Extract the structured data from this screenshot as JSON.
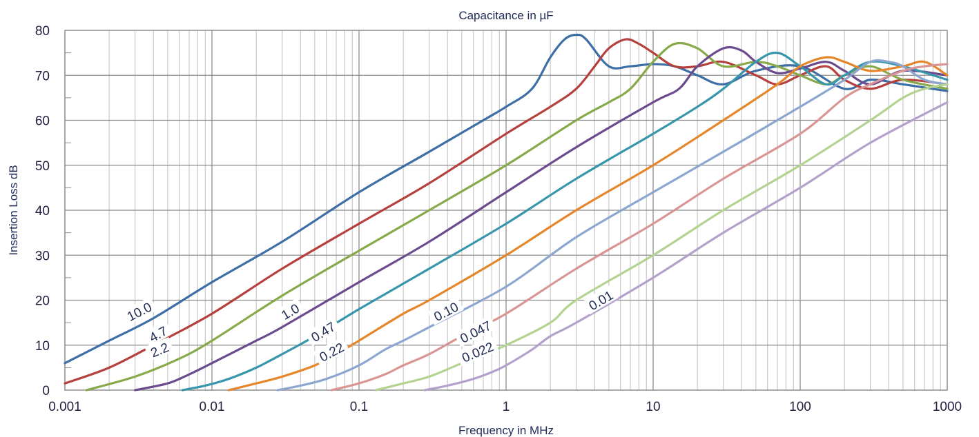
{
  "chart_data": {
    "type": "line",
    "title": "Capacitance in µF",
    "xlabel": "Frequency in MHz",
    "ylabel": "Insertion Loss dB",
    "x_scale": "log",
    "xlim": [
      0.001,
      1000
    ],
    "ylim": [
      0,
      80
    ],
    "x_ticks": [
      "0.001",
      "0.01",
      "0.1",
      "1",
      "10",
      "100",
      "1000"
    ],
    "y_ticks": [
      "0",
      "10",
      "20",
      "30",
      "40",
      "50",
      "60",
      "70",
      "80"
    ],
    "grid": true,
    "legend": "none",
    "series": [
      {
        "name": "10.0",
        "color": "#3d6ea5",
        "x": [
          0.001,
          0.002,
          0.004,
          0.01,
          0.03,
          0.1,
          0.3,
          0.7,
          1,
          1.5,
          2,
          2.5,
          3,
          3.5,
          5,
          7,
          10,
          14,
          20,
          30,
          50,
          100,
          200,
          300,
          500,
          1000
        ],
        "y": [
          6,
          11,
          16,
          24,
          33,
          44,
          53,
          60,
          63,
          67,
          74,
          78,
          79,
          78,
          72,
          72,
          72.5,
          72,
          70,
          68,
          71,
          72,
          67,
          69,
          68,
          66.5
        ],
        "label_x": 0.0032,
        "label_y": 17.5
      },
      {
        "name": "4.7",
        "color": "#b5403e",
        "x": [
          0.001,
          0.002,
          0.004,
          0.01,
          0.03,
          0.1,
          0.3,
          1,
          2,
          3,
          4,
          5,
          6.5,
          8,
          10,
          14,
          20,
          30,
          50,
          70,
          100,
          150,
          200,
          300,
          500,
          1000
        ],
        "y": [
          1.5,
          5,
          10,
          17,
          27,
          37,
          46,
          57,
          63,
          67,
          72,
          76,
          78,
          77,
          75,
          72,
          72,
          73,
          70,
          68,
          70,
          72,
          69,
          67,
          69,
          68
        ],
        "label_x": 0.0043,
        "label_y": 12.5
      },
      {
        "name": "2.2",
        "color": "#88a94a",
        "x": [
          0.0014,
          0.003,
          0.006,
          0.01,
          0.03,
          0.1,
          0.3,
          1,
          3,
          5,
          7,
          10,
          14,
          20,
          30,
          50,
          70,
          100,
          150,
          200,
          300,
          500,
          1000
        ],
        "y": [
          0,
          3,
          7,
          11,
          21,
          31,
          40,
          50,
          60,
          64,
          67,
          73,
          77,
          76,
          72,
          73,
          72,
          70,
          68,
          70,
          72,
          69,
          67
        ],
        "label_x": 0.0044,
        "label_y": 9
      },
      {
        "name": "1.0",
        "color": "#6b4b8e",
        "x": [
          0.003,
          0.005,
          0.007,
          0.01,
          0.02,
          0.03,
          0.1,
          0.3,
          1,
          3,
          10,
          15,
          20,
          30,
          40,
          50,
          70,
          100,
          150,
          200,
          300,
          500,
          1000
        ],
        "y": [
          0,
          1.5,
          3.5,
          6,
          11,
          14,
          24,
          33,
          44,
          54,
          64,
          67,
          72,
          76,
          75.5,
          73,
          70.5,
          71.5,
          73,
          71,
          68,
          71,
          70
        ],
        "label_x": 0.034,
        "label_y": 17.5
      },
      {
        "name": "0.47",
        "color": "#3796ac",
        "x": [
          0.0063,
          0.009,
          0.013,
          0.02,
          0.03,
          0.05,
          0.1,
          0.3,
          1,
          3,
          10,
          20,
          30,
          50,
          70,
          100,
          150,
          200,
          300,
          500,
          1000
        ],
        "y": [
          0,
          1,
          2.5,
          5,
          8,
          12,
          18,
          27,
          37,
          47,
          57,
          63,
          67,
          73,
          75,
          72,
          68,
          70,
          73,
          72,
          69
        ],
        "label_x": 0.057,
        "label_y": 13
      },
      {
        "name": "0.22",
        "color": "#e6862a",
        "x": [
          0.013,
          0.02,
          0.03,
          0.05,
          0.07,
          0.1,
          0.2,
          0.3,
          1,
          3,
          10,
          30,
          70,
          100,
          150,
          200,
          300,
          500,
          700,
          1000
        ],
        "y": [
          0,
          1.5,
          3,
          5.5,
          8,
          11,
          17,
          20,
          30,
          40,
          50,
          60,
          68,
          72,
          74,
          73,
          71,
          72,
          73,
          70
        ],
        "label_x": 0.065,
        "label_y": 8.5
      },
      {
        "name": "0.10",
        "color": "#8ba7d0",
        "x": [
          0.028,
          0.04,
          0.06,
          0.1,
          0.15,
          0.2,
          0.3,
          1,
          3,
          10,
          30,
          100,
          200,
          300,
          400,
          500,
          700,
          1000
        ],
        "y": [
          0,
          1,
          2.5,
          5.5,
          9,
          11,
          14,
          23,
          34,
          44,
          53,
          63,
          69,
          73,
          73,
          72,
          69,
          68
        ],
        "label_x": 0.39,
        "label_y": 17.5
      },
      {
        "name": "0.047",
        "color": "#d99594",
        "x": [
          0.065,
          0.1,
          0.15,
          0.2,
          0.3,
          0.5,
          1,
          3,
          10,
          30,
          100,
          200,
          300,
          500,
          700,
          1000
        ],
        "y": [
          0,
          1.5,
          3.5,
          5.5,
          8,
          12,
          17,
          27,
          37,
          47,
          57,
          65,
          68,
          71,
          72,
          72.5
        ],
        "label_x": 0.62,
        "label_y": 13
      },
      {
        "name": "0.022",
        "color": "#b4d291",
        "x": [
          0.13,
          0.2,
          0.3,
          0.5,
          0.7,
          1,
          2,
          3,
          10,
          30,
          100,
          300,
          500,
          700,
          1000
        ],
        "y": [
          0,
          1.5,
          3,
          6,
          8,
          10,
          15,
          20,
          30,
          40,
          50,
          60,
          65,
          67,
          68
        ],
        "label_x": 0.64,
        "label_y": 8.5
      },
      {
        "name": "0.01",
        "color": "#b3a1cb",
        "x": [
          0.28,
          0.4,
          0.6,
          0.8,
          1,
          1.5,
          2,
          3,
          10,
          30,
          100,
          300,
          1000
        ],
        "y": [
          0,
          1,
          2.5,
          4,
          5.5,
          9,
          12,
          15,
          25,
          35,
          45,
          55,
          64
        ],
        "label_x": 4.4,
        "label_y": 20
      }
    ]
  }
}
